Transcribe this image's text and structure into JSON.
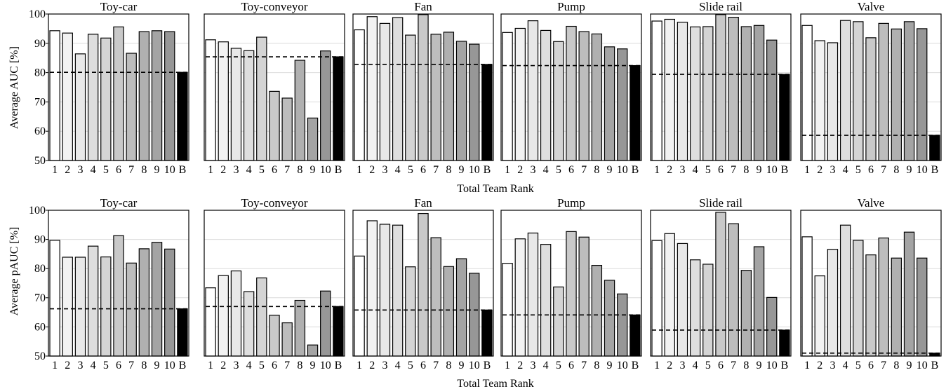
{
  "figure": {
    "rows": [
      {
        "ylabel": "Average AUC [%]",
        "xlabel": "Total Team Rank"
      },
      {
        "ylabel": "Average pAUC [%]",
        "xlabel": "Total Team Rank"
      }
    ]
  },
  "chart_data": [
    {
      "type": "bar",
      "metric": "AUC",
      "ylim": [
        50,
        100
      ],
      "yticks": [
        50,
        60,
        70,
        80,
        90,
        100
      ],
      "categories": [
        "1",
        "2",
        "3",
        "4",
        "5",
        "6",
        "7",
        "8",
        "9",
        "10",
        "B"
      ],
      "grid": "horizontal",
      "baseline_style": "dashed",
      "panels": [
        {
          "title": "Toy-car",
          "values": [
            94.3,
            93.5,
            86.4,
            93.1,
            91.8,
            95.6,
            86.6,
            94.0,
            94.3,
            94.0,
            80.1
          ]
        },
        {
          "title": "Toy-conveyor",
          "values": [
            91.2,
            90.5,
            88.3,
            87.5,
            92.1,
            73.6,
            71.3,
            84.2,
            64.5,
            87.4,
            85.4
          ]
        },
        {
          "title": "Fan",
          "values": [
            94.6,
            99.1,
            96.8,
            98.8,
            92.8,
            99.8,
            93.1,
            93.8,
            90.7,
            89.7,
            82.8
          ]
        },
        {
          "title": "Pump",
          "values": [
            93.7,
            95.1,
            97.7,
            94.4,
            90.6,
            95.8,
            94.0,
            93.2,
            88.8,
            88.1,
            82.4
          ]
        },
        {
          "title": "Slide rail",
          "values": [
            97.6,
            98.2,
            97.2,
            95.6,
            95.7,
            99.8,
            98.9,
            95.7,
            96.1,
            91.1,
            79.4
          ]
        },
        {
          "title": "Valve",
          "values": [
            96.1,
            90.9,
            90.2,
            97.8,
            97.4,
            91.9,
            96.8,
            94.9,
            97.4,
            95.0,
            58.6
          ]
        }
      ]
    },
    {
      "type": "bar",
      "metric": "pAUC",
      "ylim": [
        50,
        100
      ],
      "yticks": [
        50,
        60,
        70,
        80,
        90,
        100
      ],
      "categories": [
        "1",
        "2",
        "3",
        "4",
        "5",
        "6",
        "7",
        "8",
        "9",
        "10",
        "B"
      ],
      "grid": "horizontal",
      "baseline_style": "dashed",
      "panels": [
        {
          "title": "Toy-car",
          "values": [
            89.7,
            83.9,
            83.9,
            87.7,
            84.0,
            91.3,
            81.9,
            86.8,
            89.0,
            86.7,
            66.2
          ]
        },
        {
          "title": "Toy-conveyor",
          "values": [
            73.4,
            77.6,
            79.2,
            72.1,
            76.8,
            64.0,
            61.4,
            69.1,
            53.8,
            72.3,
            67.0
          ]
        },
        {
          "title": "Fan",
          "values": [
            84.3,
            96.4,
            95.2,
            94.9,
            80.6,
            98.9,
            90.6,
            80.7,
            83.4,
            78.4,
            65.8
          ]
        },
        {
          "title": "Pump",
          "values": [
            81.8,
            90.2,
            92.2,
            88.3,
            73.7,
            92.7,
            90.8,
            81.1,
            76.0,
            71.3,
            64.1
          ]
        },
        {
          "title": "Slide rail",
          "values": [
            89.6,
            92.0,
            88.6,
            83.0,
            81.5,
            99.3,
            95.4,
            79.4,
            87.5,
            70.1,
            58.9
          ]
        },
        {
          "title": "Valve",
          "values": [
            90.9,
            77.5,
            86.6,
            94.9,
            89.7,
            84.7,
            90.5,
            83.6,
            92.5,
            83.6,
            51.0
          ]
        }
      ]
    }
  ],
  "colors": {
    "bar_fills": [
      "#ffffff",
      "#f2f2f2",
      "#e8e8e8",
      "#dedede",
      "#d4d4d4",
      "#c9c9c9",
      "#bdbdbd",
      "#b0b0b0",
      "#a4a4a4",
      "#979797",
      "#000000"
    ],
    "grid": "#dcdcdc",
    "stroke": "#000000"
  }
}
